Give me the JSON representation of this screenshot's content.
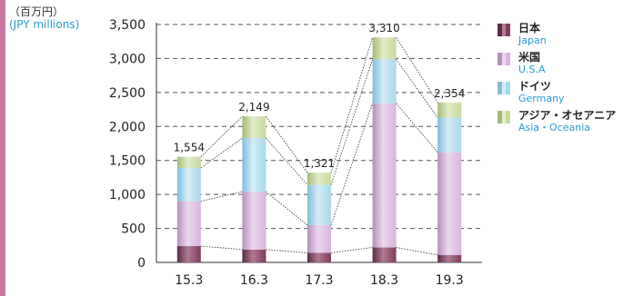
{
  "accent_color": "#c4799f",
  "unit": {
    "ja": "（百万円）",
    "en": "(JPY millions)",
    "en_color": "#2a9bd3"
  },
  "legend": [
    {
      "ja": "日本",
      "en": "Japan",
      "color": "#7c3d5a",
      "light": "#b07a94",
      "dark": "#5e2a44"
    },
    {
      "ja": "米国",
      "en": "U.S.A",
      "color": "#d8b4dc",
      "light": "#ecd8ee",
      "dark": "#b58ebd"
    },
    {
      "ja": "ドイツ",
      "en": "Germany",
      "color": "#a9d8ec",
      "light": "#d4edf7",
      "dark": "#7fbddb"
    },
    {
      "ja": "アジア・オセアニア",
      "en": "Asia・Oceania",
      "color": "#c7d9a1",
      "light": "#e2edc9",
      "dark": "#a2ba76"
    }
  ],
  "chart_data": {
    "type": "bar",
    "stacked": true,
    "categories": [
      "15.3",
      "16.3",
      "17.3",
      "18.3",
      "19.3"
    ],
    "series": [
      {
        "name": "日本 Japan",
        "values": [
          240,
          190,
          140,
          220,
          110
        ]
      },
      {
        "name": "米国 U.S.A",
        "values": [
          660,
          850,
          410,
          2120,
          1510
        ]
      },
      {
        "name": "ドイツ Germany",
        "values": [
          490,
          790,
          590,
          650,
          510
        ]
      },
      {
        "name": "アジア・オセアニア Asia・Oceania",
        "values": [
          164,
          319,
          181,
          320,
          224
        ]
      }
    ],
    "totals": [
      "1,554",
      "2,149",
      "1,321",
      "3,310",
      "2,354"
    ],
    "y_ticks": [
      "0",
      "500",
      "1,000",
      "1,500",
      "2,000",
      "2,500",
      "3,000",
      "3,500"
    ],
    "ylim": [
      0,
      3500
    ],
    "grid": true,
    "connector_lines": true,
    "legend_position": "right"
  }
}
